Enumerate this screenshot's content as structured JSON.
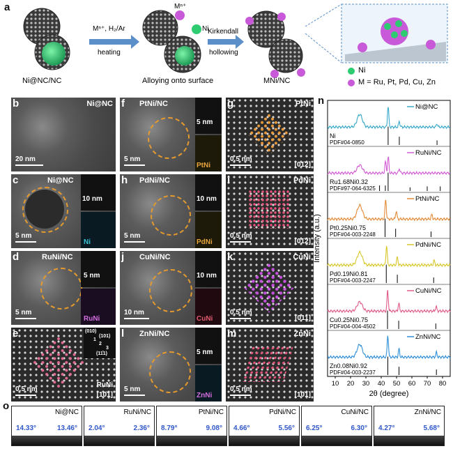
{
  "panel_a": {
    "label": "a",
    "step1_caption": "Ni@NC/NC",
    "arrow1_top": "Mⁿ⁺, H₂/Ar",
    "arrow1_bottom": "heating",
    "step2_caption": "Alloying onto surface",
    "m_ion": "Mⁿ⁺",
    "ni_label": "Ni",
    "arrow2_top": "Kirkendall",
    "arrow2_bottom": "hollowing",
    "step3_caption": "MNi/NC",
    "legend_ni": "Ni",
    "legend_m": "M = Ru, Pt, Pd, Cu, Zn",
    "colors": {
      "ni": "#2ecc71",
      "m": "#c85ad9",
      "shell": "#3a3a3a",
      "arrow": "#5b8fc9"
    }
  },
  "tem_panels": [
    {
      "label": "b",
      "title": "Ni@NC",
      "scale": "20 nm"
    },
    {
      "label": "c",
      "title": "Ni@NC",
      "scale": "5 nm",
      "inset_scale": "10 nm",
      "map": "Ni"
    },
    {
      "label": "d",
      "title": "RuNi/NC",
      "scale": "5 nm",
      "inset_scale": "5 nm",
      "map": "RuNi"
    },
    {
      "label": "e",
      "scale": "0.5 nm",
      "zone": "[10̄1]",
      "title": "RuNi",
      "fft": [
        "(010)",
        "(101)",
        "1",
        "2",
        "3",
        "(11̄1)"
      ]
    },
    {
      "label": "f",
      "title": "PtNi/NC",
      "scale": "5 nm",
      "inset_scale": "5 nm",
      "map": "PtNi"
    },
    {
      "label": "h",
      "title": "PdNi/NC",
      "scale": "5 nm",
      "inset_scale": "10 nm",
      "map": "PdNi"
    },
    {
      "label": "j",
      "title": "CuNi/NC",
      "scale": "10 nm",
      "inset_scale": "10 nm",
      "map": "CuNi"
    },
    {
      "label": "l",
      "title": "ZnNi/NC",
      "scale": "5 nm",
      "inset_scale": "5 nm",
      "map": "ZnNi"
    },
    {
      "label": "g",
      "title": "PtNi",
      "scale": "0.5 nm",
      "zone": "[01̄2]"
    },
    {
      "label": "i",
      "title": "PdNi",
      "scale": "0.5 nm",
      "zone": "[01̄2]"
    },
    {
      "label": "k",
      "title": "CuNi",
      "scale": "0.5 nm",
      "zone": "[011]"
    },
    {
      "label": "m",
      "title": "ZnNi",
      "scale": "0.5 nm",
      "zone": "[10̄1]"
    }
  ],
  "chart_data": {
    "type": "line",
    "label": "n",
    "xlabel": "2θ (degree)",
    "ylabel": "Intensity (a.u.)",
    "xlim": [
      5,
      85
    ],
    "xticks": [
      "10",
      "20",
      "30",
      "40",
      "50",
      "60",
      "70",
      "80"
    ],
    "series": [
      {
        "name": "Ni@NC",
        "color": "#3aa9c9",
        "ref": "Ni",
        "pdf": "PDF#04-0850",
        "peaks": [
          [
            26,
            0.55
          ],
          [
            44.5,
            0.9
          ],
          [
            51.8,
            0.25
          ],
          [
            76.4,
            0.15
          ]
        ],
        "sticks": [
          [
            44.5,
            1.0
          ],
          [
            51.8,
            0.45
          ],
          [
            76.4,
            0.25
          ]
        ]
      },
      {
        "name": "RuNi/NC",
        "color": "#d25cd4",
        "ref": "Ru1.68Ni0.32",
        "pdf": "PDF#97-064-6325",
        "peaks": [
          [
            26,
            0.35
          ],
          [
            42.8,
            0.5
          ],
          [
            44.6,
            0.7
          ],
          [
            51.8,
            0.2
          ]
        ],
        "sticks": [
          [
            38.9,
            0.3
          ],
          [
            42.7,
            0.3
          ],
          [
            44.5,
            1.0
          ],
          [
            58.8,
            0.2
          ],
          [
            70,
            0.25
          ],
          [
            78.5,
            0.25
          ]
        ]
      },
      {
        "name": "PtNi/NC",
        "color": "#e38a36",
        "ref": "Pt0.25Ni0.75",
        "pdf": "PDF#04-003-2248",
        "peaks": [
          [
            26,
            0.6
          ],
          [
            42.9,
            0.85
          ],
          [
            49.8,
            0.35
          ],
          [
            73,
            0.2
          ]
        ],
        "sticks": [
          [
            42.5,
            1.0
          ],
          [
            49.4,
            0.45
          ],
          [
            72.5,
            0.3
          ]
        ]
      },
      {
        "name": "PdNi/NC",
        "color": "#d8c72a",
        "ref": "Pd0.19Ni0.81",
        "pdf": "PDF#04-003-2247",
        "peaks": [
          [
            26,
            0.55
          ],
          [
            43.5,
            0.85
          ],
          [
            50.5,
            0.35
          ],
          [
            74.5,
            0.2
          ]
        ],
        "sticks": [
          [
            43.3,
            1.0
          ],
          [
            50.5,
            0.45
          ],
          [
            74.2,
            0.3
          ]
        ]
      },
      {
        "name": "CuNi/NC",
        "color": "#e05a8a",
        "ref": "Cu0.25Ni0.75",
        "pdf": "PDF#04-004-4502",
        "peaks": [
          [
            26,
            0.4
          ],
          [
            44.2,
            0.9
          ],
          [
            51.5,
            0.35
          ],
          [
            75.8,
            0.2
          ]
        ],
        "sticks": [
          [
            44.1,
            1.0
          ],
          [
            51.4,
            0.45
          ],
          [
            75.6,
            0.3
          ]
        ]
      },
      {
        "name": "ZnNi/NC",
        "color": "#2f8fd8",
        "ref": "Zn0.08Ni0.92",
        "pdf": "PDF#04-003-2237",
        "peaks": [
          [
            26,
            0.55
          ],
          [
            44.3,
            0.95
          ],
          [
            51.6,
            0.35
          ],
          [
            76,
            0.2
          ]
        ],
        "sticks": [
          [
            44.3,
            1.0
          ],
          [
            51.6,
            0.45
          ],
          [
            76,
            0.3
          ]
        ]
      }
    ]
  },
  "panel_o": {
    "label": "o",
    "items": [
      {
        "name": "Ni@NC",
        "left": "14.33°",
        "right": "13.46°"
      },
      {
        "name": "RuNi/NC",
        "left": "2.04°",
        "right": "2.36°"
      },
      {
        "name": "PtNi/NC",
        "left": "8.79°",
        "right": "9.08°"
      },
      {
        "name": "PdNi/NC",
        "left": "4.66°",
        "right": "5.56°"
      },
      {
        "name": "CuNi/NC",
        "left": "6.25°",
        "right": "6.30°"
      },
      {
        "name": "ZnNi/NC",
        "left": "4.27°",
        "right": "5.68°"
      }
    ]
  }
}
